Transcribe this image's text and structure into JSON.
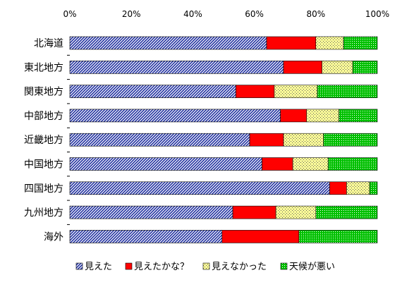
{
  "chart_data": {
    "type": "bar",
    "orientation": "horizontal",
    "stacked": true,
    "percent": true,
    "categories": [
      "北海道",
      "東北地方",
      "関東地方",
      "中部地方",
      "近畿地方",
      "中国地方",
      "四国地方",
      "九州地方",
      "海外"
    ],
    "series": [
      {
        "name": "見えた",
        "color": "#1f2fa0",
        "pattern": "diagonal-hatch",
        "values": [
          64,
          69.5,
          54,
          68.5,
          58.5,
          62.5,
          84.5,
          53,
          49.5
        ]
      },
      {
        "name": "見えたかな？",
        "color": "#ff0000",
        "pattern": "solid",
        "values": [
          16,
          12.5,
          12.5,
          8.5,
          11,
          10,
          5.5,
          14,
          25
        ]
      },
      {
        "name": "見えなかった",
        "color": "#ffff99",
        "pattern": "dotted",
        "values": [
          9,
          10,
          14,
          10.5,
          13,
          11.5,
          7.5,
          13,
          0
        ]
      },
      {
        "name": "天候が悪い",
        "color": "#00c000",
        "pattern": "dotted-green",
        "values": [
          11,
          8,
          19.5,
          12.5,
          17.5,
          16,
          2.5,
          20,
          25.5
        ]
      }
    ],
    "x_ticks": [
      "0%",
      "20%",
      "40%",
      "60%",
      "80%",
      "100%"
    ],
    "xlim": [
      0,
      100
    ],
    "grid": false,
    "legend_position": "bottom"
  }
}
